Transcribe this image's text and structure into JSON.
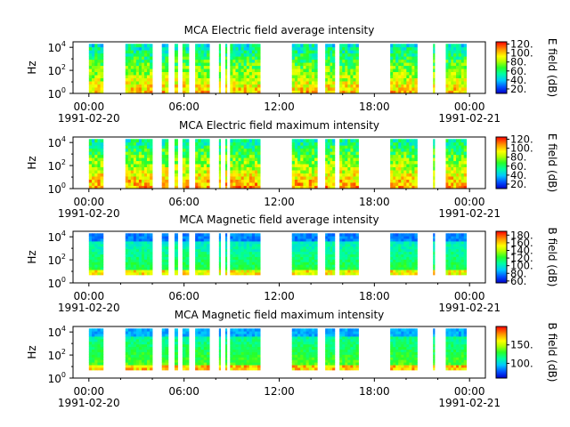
{
  "figure": {
    "background": "#ffffff"
  },
  "chart_data": [
    {
      "type": "heatmap",
      "title": "MCA  Electric field average intensity",
      "ylabel": "Hz",
      "y_scale": "log",
      "ylim": [
        1,
        30000
      ],
      "y_ticks": [
        {
          "base": "10",
          "exp": "0"
        },
        {
          "base": "10",
          "exp": "2"
        },
        {
          "base": "10",
          "exp": "4"
        }
      ],
      "x_ticks": [
        "00:00",
        "06:00",
        "12:00",
        "18:00",
        "00:00"
      ],
      "x_start_date": "1991-02-20",
      "x_end_date": "1991-02-21",
      "xlim_hours": [
        -1,
        25
      ],
      "data_intervals_hours": [
        [
          0.0,
          0.9
        ],
        [
          2.3,
          4.0
        ],
        [
          4.6,
          5.0
        ],
        [
          5.4,
          5.6
        ],
        [
          5.9,
          6.3
        ],
        [
          6.7,
          7.6
        ],
        [
          8.2,
          8.3
        ],
        [
          8.6,
          8.7
        ],
        [
          8.9,
          10.8
        ],
        [
          12.8,
          14.4
        ],
        [
          14.9,
          15.5
        ],
        [
          15.8,
          17.0
        ],
        [
          19.0,
          20.7
        ],
        [
          21.7,
          21.8
        ],
        [
          22.5,
          23.8
        ]
      ],
      "freq_range_hz": [
        1,
        20000
      ],
      "colorbar": {
        "label": "E field (dB)",
        "range": [
          10,
          125
        ],
        "ticks": [
          "20.",
          "40.",
          "60.",
          "80.",
          "100.",
          "120."
        ]
      },
      "grid": false
    },
    {
      "type": "heatmap",
      "title": "MCA  Electric field maximum intensity",
      "ylabel": "Hz",
      "y_scale": "log",
      "ylim": [
        1,
        30000
      ],
      "y_ticks": [
        {
          "base": "10",
          "exp": "0"
        },
        {
          "base": "10",
          "exp": "2"
        },
        {
          "base": "10",
          "exp": "4"
        }
      ],
      "x_ticks": [
        "00:00",
        "06:00",
        "12:00",
        "18:00",
        "00:00"
      ],
      "x_start_date": "1991-02-20",
      "x_end_date": "1991-02-21",
      "xlim_hours": [
        -1,
        25
      ],
      "data_intervals_hours": [
        [
          0.0,
          0.9
        ],
        [
          2.3,
          4.0
        ],
        [
          4.6,
          5.0
        ],
        [
          5.4,
          5.6
        ],
        [
          5.9,
          6.3
        ],
        [
          6.7,
          7.6
        ],
        [
          8.2,
          8.3
        ],
        [
          8.6,
          8.7
        ],
        [
          8.9,
          10.8
        ],
        [
          12.8,
          14.4
        ],
        [
          14.9,
          15.5
        ],
        [
          15.8,
          17.0
        ],
        [
          19.0,
          20.7
        ],
        [
          21.7,
          21.8
        ],
        [
          22.5,
          23.8
        ]
      ],
      "freq_range_hz": [
        1,
        20000
      ],
      "colorbar": {
        "label": "E field (dB)",
        "range": [
          10,
          125
        ],
        "ticks": [
          "20.",
          "40.",
          "60.",
          "80.",
          "100.",
          "120."
        ]
      },
      "grid": false
    },
    {
      "type": "heatmap",
      "title": "MCA  Magnetic field average intensity",
      "ylabel": "Hz",
      "y_scale": "log",
      "ylim": [
        1,
        30000
      ],
      "y_ticks": [
        {
          "base": "10",
          "exp": "0"
        },
        {
          "base": "10",
          "exp": "2"
        },
        {
          "base": "10",
          "exp": "4"
        }
      ],
      "x_ticks": [
        "00:00",
        "06:00",
        "12:00",
        "18:00",
        "00:00"
      ],
      "x_start_date": "1991-02-20",
      "x_end_date": "1991-02-21",
      "xlim_hours": [
        -1,
        25
      ],
      "data_intervals_hours": [
        [
          0.0,
          0.9
        ],
        [
          2.3,
          4.0
        ],
        [
          4.6,
          5.0
        ],
        [
          5.4,
          5.6
        ],
        [
          5.9,
          6.3
        ],
        [
          6.7,
          7.6
        ],
        [
          8.2,
          8.3
        ],
        [
          8.6,
          8.7
        ],
        [
          8.9,
          10.8
        ],
        [
          12.8,
          14.4
        ],
        [
          14.9,
          15.5
        ],
        [
          15.8,
          17.0
        ],
        [
          19.0,
          20.7
        ],
        [
          21.7,
          21.8
        ],
        [
          22.5,
          23.8
        ]
      ],
      "freq_range_hz": [
        5,
        20000
      ],
      "colorbar": {
        "label": "B field (dB)",
        "range": [
          55,
          190
        ],
        "ticks": [
          "60.",
          "80.",
          "100.",
          "120.",
          "140.",
          "160.",
          "180."
        ]
      },
      "grid": false
    },
    {
      "type": "heatmap",
      "title": "MCA  Magnetic field maximum intensity",
      "ylabel": "Hz",
      "y_scale": "log",
      "ylim": [
        1,
        30000
      ],
      "y_ticks": [
        {
          "base": "10",
          "exp": "0"
        },
        {
          "base": "10",
          "exp": "2"
        },
        {
          "base": "10",
          "exp": "4"
        }
      ],
      "x_ticks": [
        "00:00",
        "06:00",
        "12:00",
        "18:00",
        "00:00"
      ],
      "x_start_date": "1991-02-20",
      "x_end_date": "1991-02-21",
      "xlim_hours": [
        -1,
        25
      ],
      "data_intervals_hours": [
        [
          0.0,
          0.9
        ],
        [
          2.3,
          4.0
        ],
        [
          4.6,
          5.0
        ],
        [
          5.4,
          5.6
        ],
        [
          5.9,
          6.3
        ],
        [
          6.7,
          7.6
        ],
        [
          8.2,
          8.3
        ],
        [
          8.6,
          8.7
        ],
        [
          8.9,
          10.8
        ],
        [
          12.8,
          14.4
        ],
        [
          14.9,
          15.5
        ],
        [
          15.8,
          17.0
        ],
        [
          19.0,
          20.7
        ],
        [
          21.7,
          21.8
        ],
        [
          22.5,
          23.8
        ]
      ],
      "freq_range_hz": [
        5,
        20000
      ],
      "colorbar": {
        "label": "B field (dB)",
        "range": [
          60,
          200
        ],
        "ticks": [
          "100.",
          "150."
        ]
      },
      "grid": false
    }
  ]
}
